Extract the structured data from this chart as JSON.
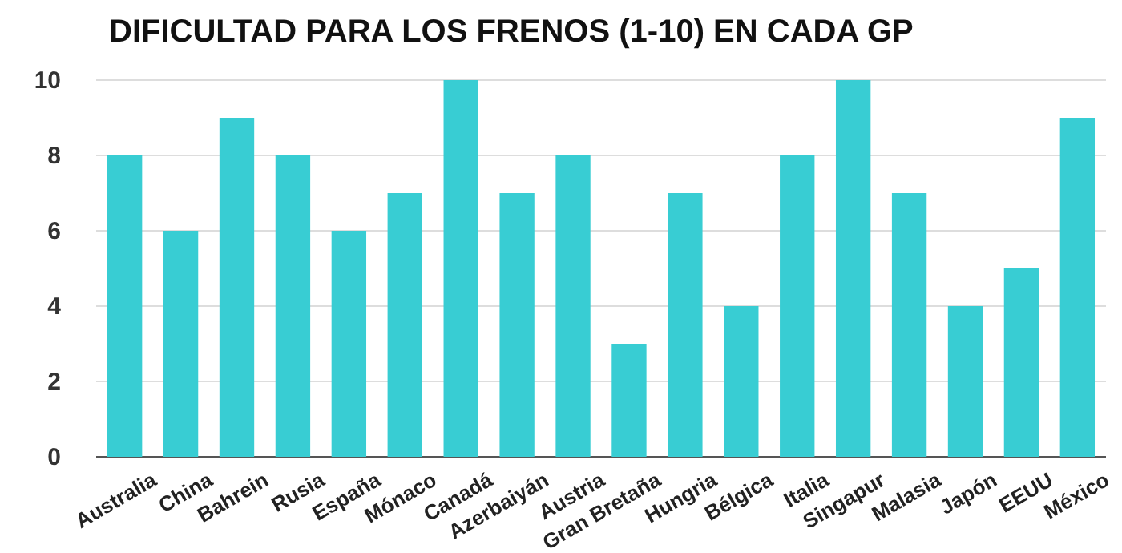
{
  "chart_data": {
    "type": "bar",
    "title": "DIFICULTAD PARA LOS FRENOS (1-10) EN CADA GP",
    "categories": [
      "Australia",
      "China",
      "Bahrein",
      "Rusia",
      "España",
      "Mónaco",
      "Canadá",
      "Azerbaiyán",
      "Austria",
      "Gran Bretaña",
      "Hungria",
      "Bélgica",
      "Italia",
      "Singapur",
      "Malasia",
      "Japón",
      "EEUU",
      "México"
    ],
    "values": [
      8,
      6,
      9,
      8,
      6,
      7,
      10,
      7,
      8,
      3,
      7,
      4,
      8,
      10,
      7,
      4,
      5,
      9
    ],
    "color": "#38cdd3",
    "ylim": [
      0,
      10
    ],
    "yticks": [
      0,
      2,
      4,
      6,
      8,
      10
    ],
    "grid": "y"
  }
}
